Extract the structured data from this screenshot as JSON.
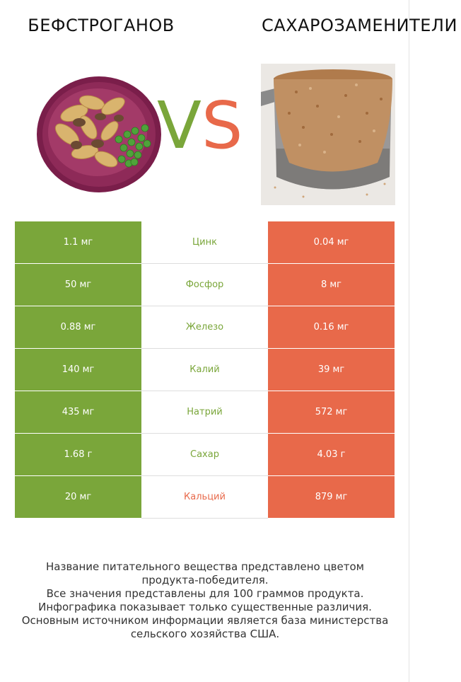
{
  "header": {
    "left_title": "БЕФСТРОГАНОВ",
    "right_title": "САХАРОЗАМЕНИТЕЛИ",
    "vs_v": "V",
    "vs_s": "S"
  },
  "colors": {
    "left_winner": "#7aa63a",
    "right_winner": "#e8694a"
  },
  "rows": [
    {
      "left": "1.1 мг",
      "nutrient": "Цинк",
      "right": "0.04 мг",
      "winner": "left"
    },
    {
      "left": "50 мг",
      "nutrient": "Фосфор",
      "right": "8 мг",
      "winner": "left"
    },
    {
      "left": "0.88 мг",
      "nutrient": "Железо",
      "right": "0.16 мг",
      "winner": "left"
    },
    {
      "left": "140 мг",
      "nutrient": "Калий",
      "right": "39 мг",
      "winner": "left"
    },
    {
      "left": "435 мг",
      "nutrient": "Натрий",
      "right": "572 мг",
      "winner": "left"
    },
    {
      "left": "1.68 г",
      "nutrient": "Сахар",
      "right": "4.03 г",
      "winner": "left"
    },
    {
      "left": "20 мг",
      "nutrient": "Кальций",
      "right": "879 мг",
      "winner": "right"
    }
  ],
  "footnote": {
    "line1": "Название питательного вещества представлено цветом",
    "line2": "продукта-победителя.",
    "line3": "Все значения представлены для 100 граммов продукта.",
    "line4": "Инфографика показывает только существенные различия.",
    "line5": "Основным источником информации является база министерства",
    "line6": "сельского хозяйства США."
  }
}
